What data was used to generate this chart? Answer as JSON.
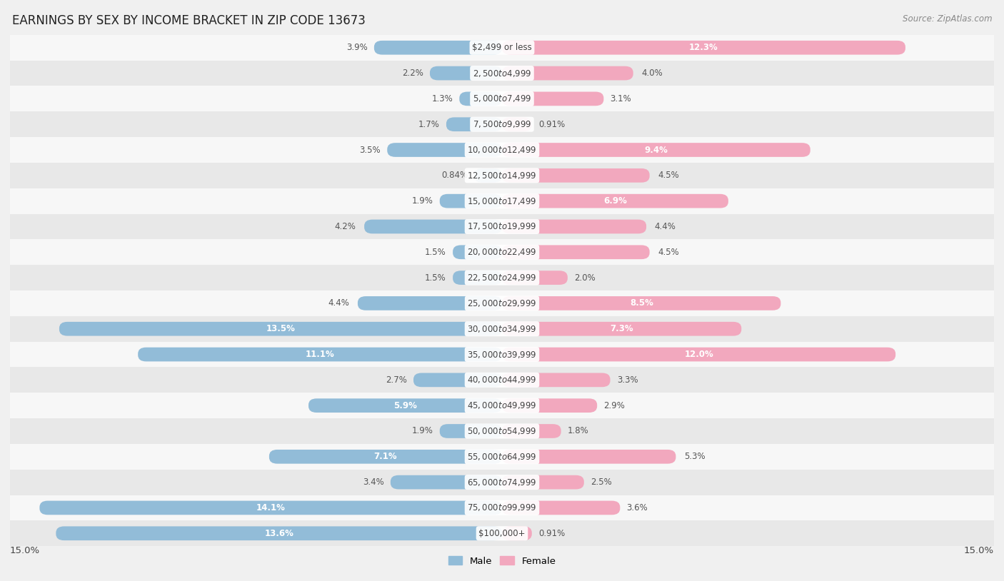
{
  "title": "EARNINGS BY SEX BY INCOME BRACKET IN ZIP CODE 13673",
  "source": "Source: ZipAtlas.com",
  "categories": [
    "$2,499 or less",
    "$2,500 to $4,999",
    "$5,000 to $7,499",
    "$7,500 to $9,999",
    "$10,000 to $12,499",
    "$12,500 to $14,999",
    "$15,000 to $17,499",
    "$17,500 to $19,999",
    "$20,000 to $22,499",
    "$22,500 to $24,999",
    "$25,000 to $29,999",
    "$30,000 to $34,999",
    "$35,000 to $39,999",
    "$40,000 to $44,999",
    "$45,000 to $49,999",
    "$50,000 to $54,999",
    "$55,000 to $64,999",
    "$65,000 to $74,999",
    "$75,000 to $99,999",
    "$100,000+"
  ],
  "male": [
    3.9,
    2.2,
    1.3,
    1.7,
    3.5,
    0.84,
    1.9,
    4.2,
    1.5,
    1.5,
    4.4,
    13.5,
    11.1,
    2.7,
    5.9,
    1.9,
    7.1,
    3.4,
    14.1,
    13.6
  ],
  "female": [
    12.3,
    4.0,
    3.1,
    0.91,
    9.4,
    4.5,
    6.9,
    4.4,
    4.5,
    2.0,
    8.5,
    7.3,
    12.0,
    3.3,
    2.9,
    1.8,
    5.3,
    2.5,
    3.6,
    0.91
  ],
  "male_color": "#92bcd8",
  "female_color": "#f2a8be",
  "bg_color": "#f0f0f0",
  "row_light": "#f7f7f7",
  "row_dark": "#e8e8e8",
  "xlim": 15.0,
  "title_fontsize": 12,
  "source_fontsize": 8.5,
  "label_fontsize": 8.5,
  "cat_fontsize": 8.5,
  "tick_fontsize": 9.5,
  "bar_height": 0.55
}
